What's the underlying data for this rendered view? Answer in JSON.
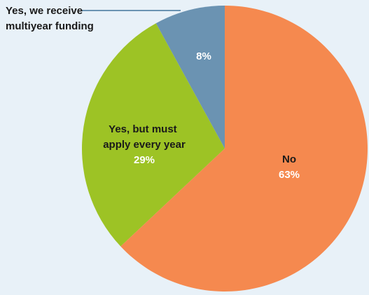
{
  "chart_data": {
    "type": "pie",
    "slices": [
      {
        "label": [
          "Yes, we receive",
          "multiyear funding"
        ],
        "value": 8,
        "value_label": "8%",
        "color": "#6b93b2"
      },
      {
        "label": [
          "Yes, but must",
          "apply every year"
        ],
        "value": 29,
        "value_label": "29%",
        "color": "#9dc325"
      },
      {
        "label": [
          "No"
        ],
        "value": 63,
        "value_label": "63%",
        "color": "#f5894f"
      }
    ],
    "start": "12 o'clock",
    "direction": "counterclockwise",
    "legend": "none",
    "background": "#e8f1f8"
  }
}
